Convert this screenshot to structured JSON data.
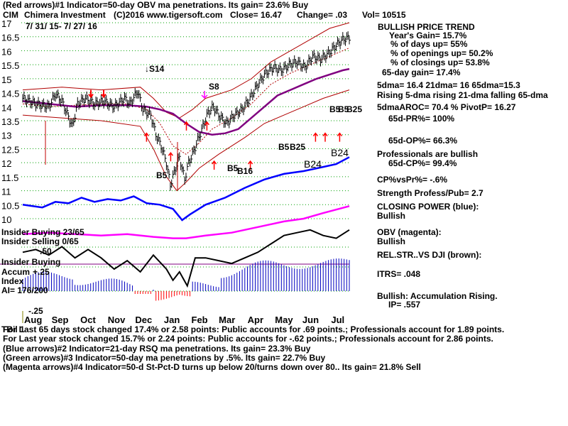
{
  "header": {
    "line1": "(Red arrows)#1 Indicator=50-day OBV ma penetrations. Its gain= 23.6% Buy",
    "ticker": "CIM",
    "company": "Chimera Investment",
    "copyright": "(C)2016 www.tigersoft.com",
    "close": "Close=  16.47",
    "change": "Change= .03",
    "volume": "Vol= 10515",
    "date_range": "7/ 31/ 15-  7/ 27/ 16"
  },
  "side_panel": {
    "title": "BULLISH PRICE TREND",
    "lines": [
      "Year's Gain= 15.7%",
      "% of days up= 55%",
      "% of openings up= 50.2%",
      "% of closings up= 53.8%",
      "65-day gain= 17.4%",
      "5dma= 16.4  21dma= 16  65dma=15.3",
      "Rising 5-dma rising 21-dma falling 65-dma",
      "5dmaAROC= 70.4  %  PivotP= 16.27",
      "65d-PR%= 100%",
      "65d-OP%= 66.3%",
      "Professionals are bullish",
      "65d-CP%= 99.4%",
      "CP%vsPr%= -.6%",
      "Strength Profess/Pub= 2.7",
      "CLOSING POWER (blue):",
      "Bullish",
      "OBV (magenta):",
      "Bullish",
      "REL.STR..VS DJI (brown):",
      "ITRS= .048",
      "Bullish: Accumulation Rising.",
      "IP=  .557"
    ]
  },
  "left_labels": {
    "insider_buying_top": "Insider Buying  23/65",
    "insider_selling": "Insider Selling  0/65",
    "insider_buying_mid": "Insider Buying",
    "accum": "Accum",
    "index": "Index",
    "ai": "AI= 176/200",
    "plus50": ".50",
    "plus25": "+.25",
    "minus25": "-.25"
  },
  "signals": {
    "s14": "S14",
    "s8": "S8",
    "b5a": "B5",
    "b5b": "B5",
    "b16": "B16",
    "b5c": "B5",
    "b25a": "B25",
    "b5d": "B5",
    "b5e": "B5",
    "b25b": "B25",
    "b24a": "B24",
    "b24b": "B24"
  },
  "footer": {
    "line1_prefix": "TBil 1",
    "line1": "For Last 65 days stock changed  17.4% or  2.58 points:  Public accounts for  .69 points.;  Professionals account for  1.89 points.",
    "line2": "For Last year stock changed  15.7% or  2.24 points:  Public accounts for -.62 points.;  Professionals account for  2.86 points.",
    "line3": "(Blue arrows)#2 Indicator=21-day RSQ ma penetrations. Its gain= 23.3% Buy",
    "line4": "(Green arrows)#3 Indicator=50-day ma penetrations by .5%. Its gain= 22.7% Buy",
    "line5": "(Magenta arrows)#4 Indicator=50-d St-Pct-D turns up below 20/turns down over 80.. Its gain= 21.8% Sell"
  },
  "chart_data": {
    "type": "line",
    "title": "CIM Chimera Investment",
    "ylim": [
      10,
      17
    ],
    "yticks": [
      "17",
      "16.5",
      "16",
      "15.5",
      "15",
      "14.5",
      "14",
      "13.5",
      "13",
      "12.5",
      "12",
      "11.5",
      "11",
      "10.5",
      "10"
    ],
    "ytick_values": [
      17,
      16.5,
      16,
      15.5,
      15,
      14.5,
      14,
      13.5,
      13,
      12.5,
      12,
      11.5,
      11,
      10.5,
      10
    ],
    "months": [
      "Aug",
      "Sep",
      "Oct",
      "Nov",
      "Dec",
      "Jan",
      "Feb",
      "Mar",
      "Apr",
      "May",
      "Jun",
      "Jul"
    ],
    "month_index": [
      0,
      21,
      43,
      64,
      85,
      107,
      128,
      149,
      171,
      192,
      213,
      235
    ],
    "n_days": 251,
    "price": [
      [
        0,
        14.3
      ],
      [
        10,
        14.1
      ],
      [
        20,
        14.0
      ],
      [
        25,
        14.45
      ],
      [
        30,
        14.2
      ],
      [
        38,
        13.3
      ],
      [
        42,
        14.1
      ],
      [
        48,
        14.3
      ],
      [
        55,
        14.1
      ],
      [
        62,
        14.2
      ],
      [
        70,
        14.0
      ],
      [
        78,
        14.3
      ],
      [
        82,
        14.1
      ],
      [
        88,
        14.55
      ],
      [
        92,
        13.9
      ],
      [
        98,
        13.7
      ],
      [
        102,
        13.0
      ],
      [
        106,
        12.6
      ],
      [
        110,
        12.0
      ],
      [
        113,
        11.2
      ],
      [
        117,
        11.8
      ],
      [
        120,
        12.2
      ],
      [
        124,
        11.4
      ],
      [
        127,
        12.0
      ],
      [
        130,
        12.3
      ],
      [
        134,
        12.8
      ],
      [
        138,
        13.3
      ],
      [
        142,
        13.8
      ],
      [
        146,
        14.0
      ],
      [
        150,
        13.7
      ],
      [
        156,
        13.4
      ],
      [
        162,
        13.7
      ],
      [
        168,
        13.9
      ],
      [
        174,
        14.3
      ],
      [
        180,
        14.8
      ],
      [
        186,
        15.2
      ],
      [
        192,
        15.4
      ],
      [
        198,
        15.3
      ],
      [
        204,
        15.5
      ],
      [
        210,
        15.6
      ],
      [
        216,
        15.4
      ],
      [
        222,
        15.8
      ],
      [
        228,
        15.7
      ],
      [
        234,
        15.9
      ],
      [
        240,
        16.2
      ],
      [
        245,
        16.4
      ],
      [
        250,
        16.47
      ]
    ],
    "ma65": [
      [
        0,
        14.2
      ],
      [
        20,
        14.1
      ],
      [
        40,
        14.0
      ],
      [
        60,
        14.05
      ],
      [
        80,
        14.05
      ],
      [
        95,
        14.0
      ],
      [
        105,
        13.9
      ],
      [
        115,
        13.75
      ],
      [
        125,
        13.4
      ],
      [
        135,
        13.1
      ],
      [
        145,
        13.0
      ],
      [
        155,
        13.05
      ],
      [
        165,
        13.2
      ],
      [
        175,
        13.6
      ],
      [
        185,
        14.0
      ],
      [
        195,
        14.4
      ],
      [
        205,
        14.6
      ],
      [
        215,
        14.8
      ],
      [
        225,
        15.0
      ],
      [
        235,
        15.15
      ],
      [
        245,
        15.3
      ],
      [
        250,
        15.35
      ]
    ],
    "ma21": [
      [
        0,
        14.1
      ],
      [
        20,
        14.0
      ],
      [
        40,
        14.05
      ],
      [
        60,
        14.1
      ],
      [
        80,
        14.1
      ],
      [
        95,
        13.9
      ],
      [
        105,
        13.4
      ],
      [
        115,
        12.6
      ],
      [
        125,
        12.3
      ],
      [
        135,
        12.7
      ],
      [
        145,
        13.2
      ],
      [
        160,
        13.6
      ],
      [
        175,
        14.1
      ],
      [
        190,
        14.8
      ],
      [
        205,
        15.2
      ],
      [
        220,
        15.5
      ],
      [
        235,
        15.8
      ],
      [
        250,
        16.1
      ]
    ],
    "upper_band": [
      [
        0,
        14.6
      ],
      [
        30,
        14.7
      ],
      [
        60,
        14.6
      ],
      [
        90,
        14.7
      ],
      [
        100,
        14.3
      ],
      [
        110,
        13.8
      ],
      [
        120,
        13.6
      ],
      [
        130,
        13.9
      ],
      [
        140,
        14.3
      ],
      [
        160,
        14.6
      ],
      [
        175,
        15.0
      ],
      [
        190,
        15.6
      ],
      [
        205,
        16.0
      ],
      [
        220,
        16.4
      ],
      [
        235,
        16.8
      ],
      [
        250,
        17.0
      ]
    ],
    "lower_band": [
      [
        0,
        13.7
      ],
      [
        30,
        13.6
      ],
      [
        60,
        13.5
      ],
      [
        90,
        13.3
      ],
      [
        100,
        12.5
      ],
      [
        110,
        11.5
      ],
      [
        118,
        11.0
      ],
      [
        125,
        11.3
      ],
      [
        135,
        11.8
      ],
      [
        150,
        12.3
      ],
      [
        170,
        12.9
      ],
      [
        185,
        13.4
      ],
      [
        200,
        13.7
      ],
      [
        215,
        14.0
      ],
      [
        230,
        14.3
      ],
      [
        250,
        14.6
      ]
    ],
    "closing_power": [
      [
        0,
        10.5
      ],
      [
        15,
        10.4
      ],
      [
        25,
        10.6
      ],
      [
        35,
        10.55
      ],
      [
        45,
        10.75
      ],
      [
        55,
        10.6
      ],
      [
        65,
        10.7
      ],
      [
        75,
        10.65
      ],
      [
        85,
        10.8
      ],
      [
        95,
        10.55
      ],
      [
        105,
        10.5
      ],
      [
        115,
        10.35
      ],
      [
        122,
        9.95
      ],
      [
        128,
        10.15
      ],
      [
        140,
        10.5
      ],
      [
        155,
        10.75
      ],
      [
        170,
        11.1
      ],
      [
        185,
        11.4
      ],
      [
        200,
        11.6
      ],
      [
        215,
        11.7
      ],
      [
        230,
        11.85
      ],
      [
        240,
        11.95
      ],
      [
        250,
        12.2
      ]
    ],
    "obv": [
      [
        0,
        9.45
      ],
      [
        20,
        9.5
      ],
      [
        40,
        9.45
      ],
      [
        60,
        9.4
      ],
      [
        80,
        9.45
      ],
      [
        100,
        9.35
      ],
      [
        115,
        9.3
      ],
      [
        125,
        9.3
      ],
      [
        140,
        9.4
      ],
      [
        160,
        9.5
      ],
      [
        180,
        9.7
      ],
      [
        200,
        9.9
      ],
      [
        215,
        10.0
      ],
      [
        230,
        10.2
      ],
      [
        250,
        10.45
      ]
    ],
    "rel_strength": [
      [
        0,
        8.8
      ],
      [
        10,
        8.9
      ],
      [
        20,
        8.7
      ],
      [
        30,
        9.0
      ],
      [
        40,
        8.6
      ],
      [
        50,
        8.9
      ],
      [
        60,
        8.6
      ],
      [
        70,
        8.2
      ],
      [
        80,
        8.5
      ],
      [
        90,
        8.1
      ],
      [
        100,
        8.7
      ],
      [
        110,
        8.2
      ],
      [
        115,
        7.8
      ],
      [
        120,
        8.1
      ],
      [
        126,
        7.6
      ],
      [
        132,
        8.6
      ],
      [
        140,
        8.6
      ],
      [
        150,
        8.5
      ],
      [
        160,
        8.4
      ],
      [
        170,
        8.6
      ],
      [
        180,
        8.8
      ],
      [
        190,
        9.1
      ],
      [
        200,
        9.4
      ],
      [
        210,
        9.5
      ],
      [
        220,
        9.6
      ],
      [
        230,
        9.4
      ],
      [
        240,
        9.3
      ],
      [
        250,
        9.6
      ]
    ]
  },
  "colors": {
    "price": "#000000",
    "bands": "#b00000",
    "ma65": "#800080",
    "closing_power": "#0000ff",
    "obv": "#ff00ff",
    "rel_strength": "#000000",
    "accum_pos": "#0000c0",
    "accum_neg": "#ff0000",
    "grid": "#00a000",
    "signal_text": "#000000"
  }
}
